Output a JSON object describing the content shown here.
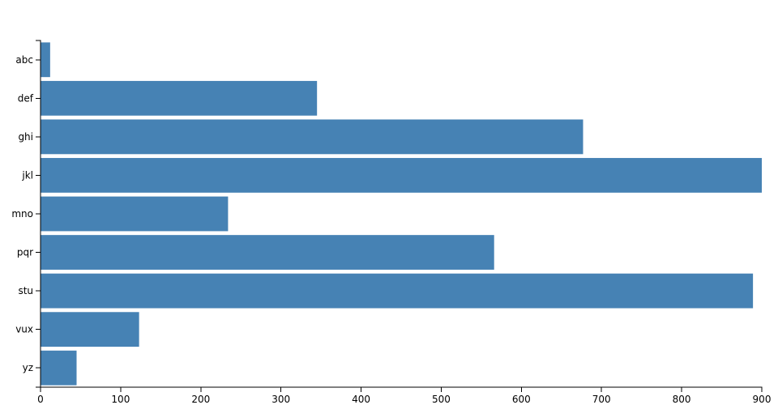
{
  "chart_data": {
    "type": "bar",
    "orientation": "horizontal",
    "categories": [
      "abc",
      "def",
      "ghi",
      "jkl",
      "mno",
      "pqr",
      "stu",
      "vux",
      "yz"
    ],
    "values": [
      12,
      345,
      677,
      900,
      234,
      566,
      889,
      123,
      45
    ],
    "color": "#4682b4",
    "xlim": [
      0,
      900
    ],
    "xticks": [
      0,
      100,
      200,
      300,
      400,
      500,
      600,
      700,
      800,
      900
    ],
    "grid": false
  }
}
